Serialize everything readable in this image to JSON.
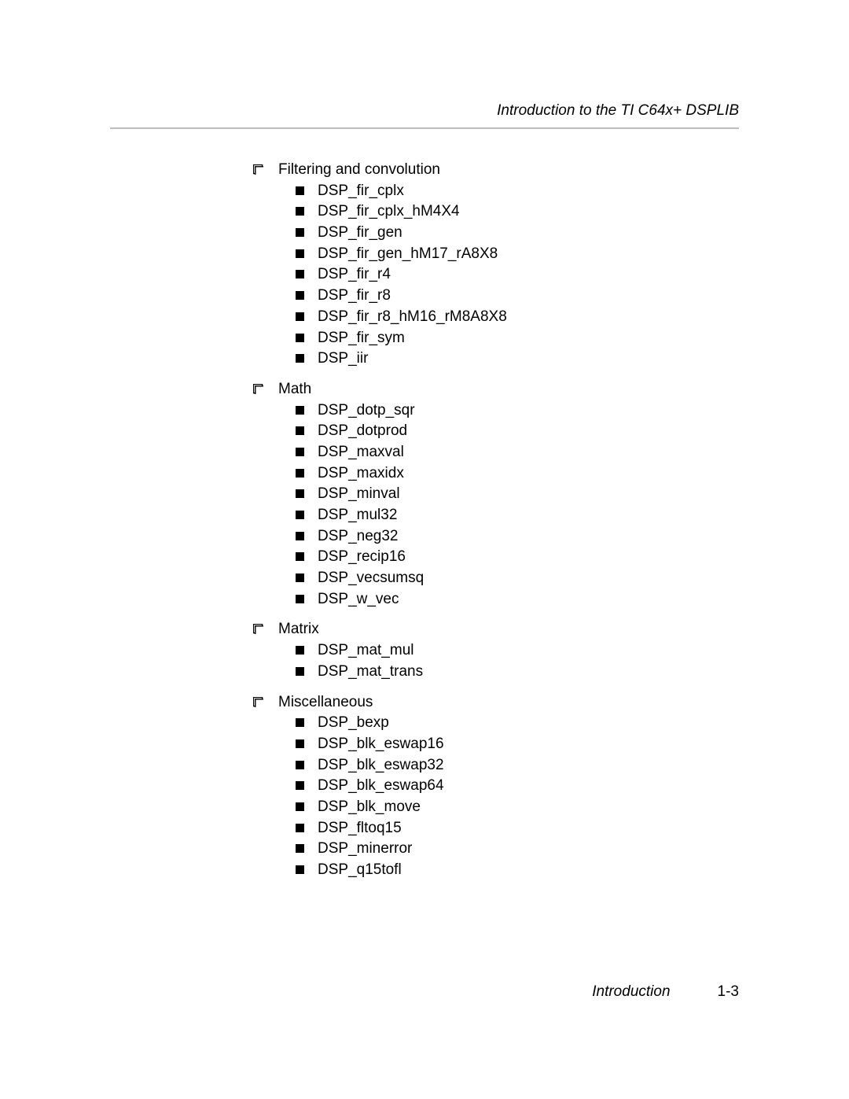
{
  "header": {
    "title": "Introduction to the TI C64x+ DSPLIB"
  },
  "sections": [
    {
      "title": "Filtering and convolution",
      "items": [
        "DSP_fir_cplx",
        "DSP_fir_cplx_hM4X4",
        "DSP_fir_gen",
        "DSP_fir_gen_hM17_rA8X8",
        "DSP_fir_r4",
        "DSP_fir_r8",
        "DSP_fir_r8_hM16_rM8A8X8",
        "DSP_fir_sym",
        "DSP_iir"
      ]
    },
    {
      "title": "Math",
      "items": [
        "DSP_dotp_sqr",
        "DSP_dotprod",
        "DSP_maxval",
        "DSP_maxidx",
        "DSP_minval",
        "DSP_mul32",
        "DSP_neg32",
        "DSP_recip16",
        "DSP_vecsumsq",
        "DSP_w_vec"
      ]
    },
    {
      "title": "Matrix",
      "items": [
        "DSP_mat_mul",
        "DSP_mat_trans"
      ]
    },
    {
      "title": "Miscellaneous",
      "items": [
        "DSP_bexp",
        "DSP_blk_eswap16",
        "DSP_blk_eswap32",
        "DSP_blk_eswap64",
        "DSP_blk_move",
        "DSP_fltoq15",
        "DSP_minerror",
        "DSP_q15tofl"
      ]
    }
  ],
  "footer": {
    "label": "Introduction",
    "page": "1-3"
  },
  "style": {
    "text_color": "#000000",
    "divider_color": "#bdbdbd",
    "font_size_pt": 14,
    "square_bullet_color": "#000000",
    "background_color": "#ffffff"
  }
}
